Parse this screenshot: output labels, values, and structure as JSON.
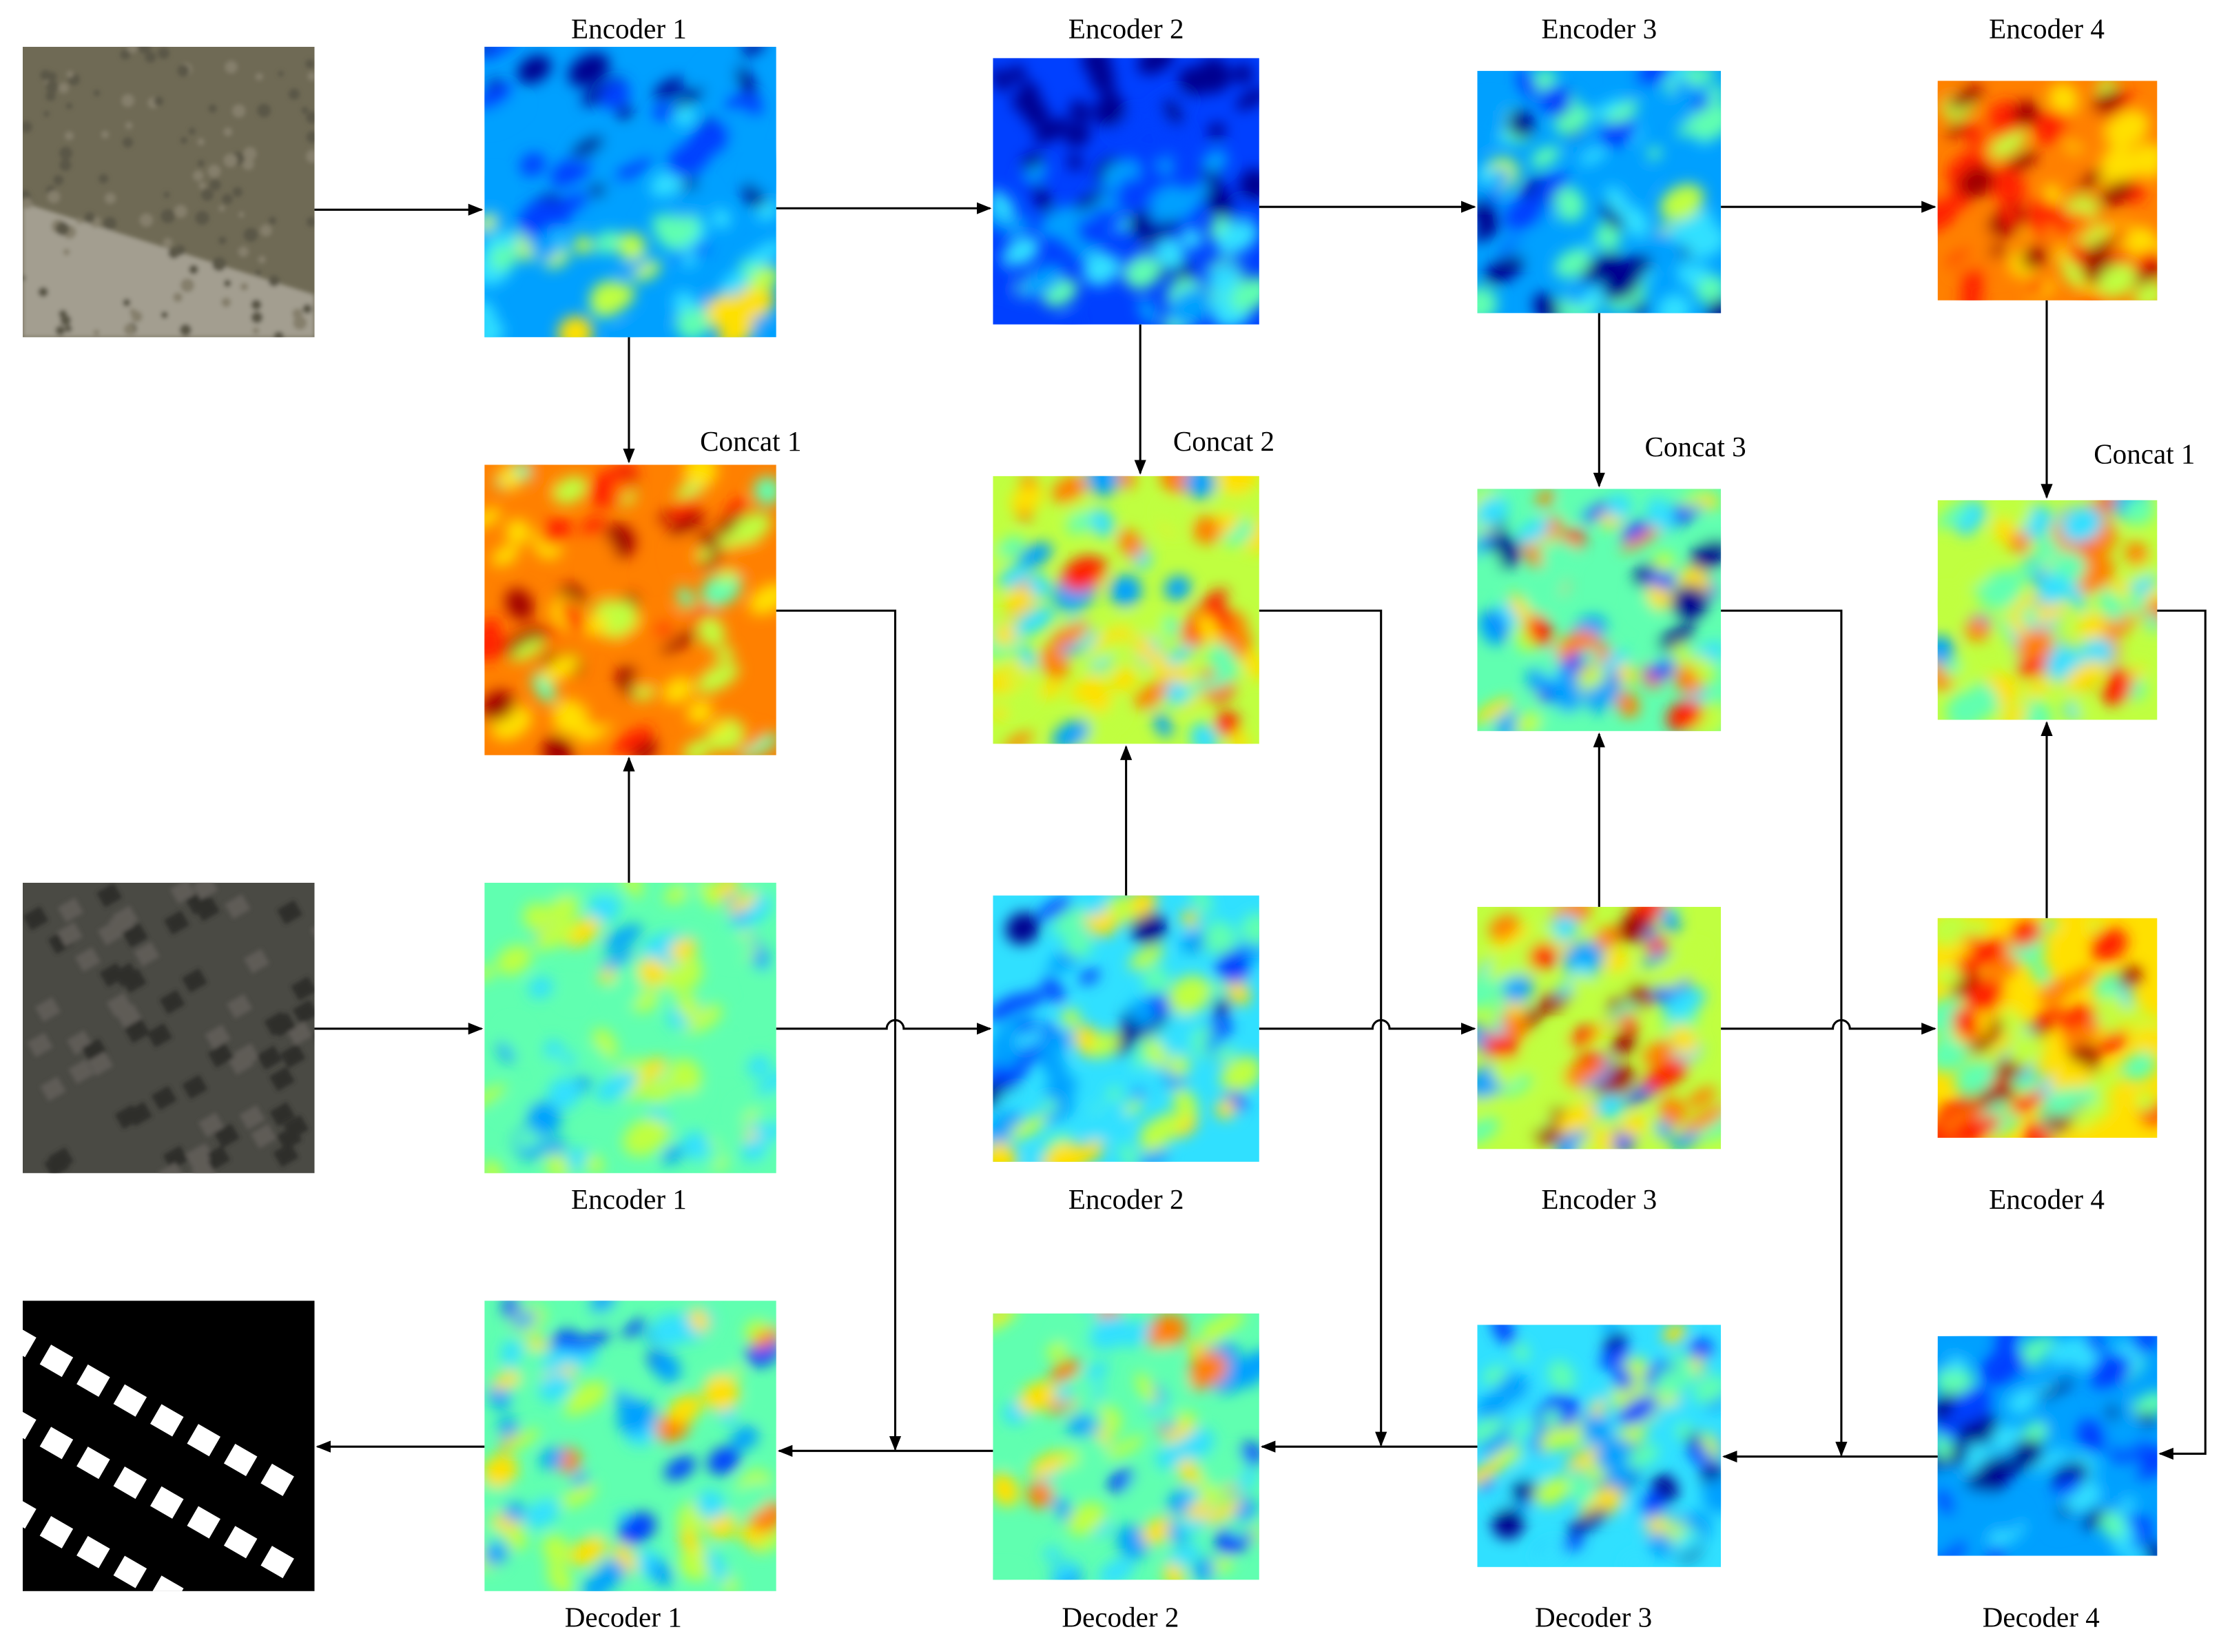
{
  "encoder_top_labels": [
    "Encoder 1",
    "Encoder 2",
    "Encoder 3",
    "Encoder 4"
  ],
  "concat_labels": [
    "Concat 1",
    "Concat 2",
    "Concat 3",
    "Concat 1"
  ],
  "encoder_bottom_labels": [
    "Encoder 1",
    "Encoder 2",
    "Encoder 3",
    "Encoder 4"
  ],
  "decoder_labels": [
    "Decoder 1",
    "Decoder 2",
    "Decoder 3",
    "Decoder 4"
  ]
}
